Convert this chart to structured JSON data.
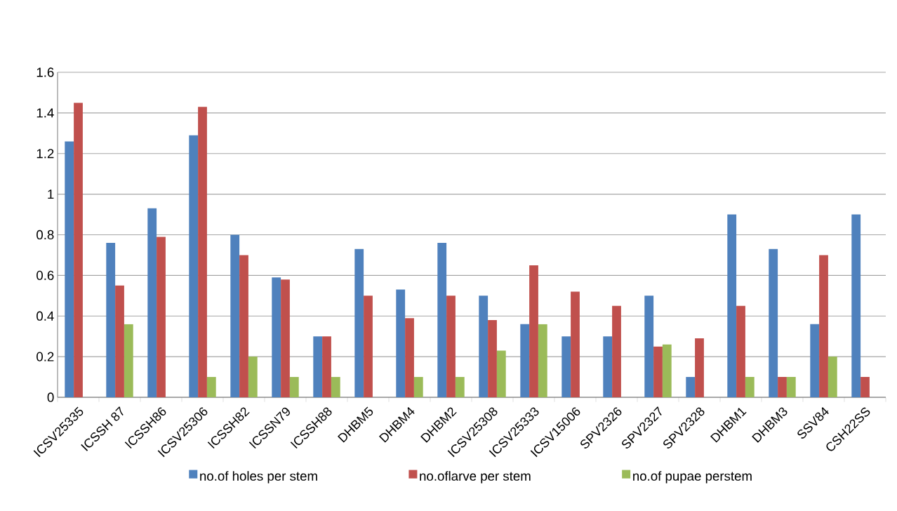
{
  "chart_data": {
    "type": "bar",
    "categories": [
      "ICSV25335",
      "ICSSH 87",
      "ICSSH86",
      "ICSV25306",
      "ICSSH82",
      "ICSSN79",
      "ICSSH88",
      "DHBM5",
      "DHBM4",
      "DHBM2",
      "ICSV25308",
      "ICSV25333",
      "ICSV15006",
      "SPV2326",
      "SPV2327",
      "SPV2328",
      "DHBM1",
      "DHBM3",
      "SSV84",
      "CSH22SS"
    ],
    "series": [
      {
        "name": "no.of holes per stem",
        "color": "#4f81bd",
        "values": [
          1.26,
          0.76,
          0.93,
          1.29,
          0.8,
          0.59,
          0.3,
          0.73,
          0.53,
          0.76,
          0.5,
          0.36,
          0.3,
          0.3,
          0.5,
          0.1,
          0.9,
          0.73,
          0.36,
          0.9
        ]
      },
      {
        "name": "no.oflarve per stem",
        "color": "#c0504d",
        "values": [
          1.45,
          0.55,
          0.79,
          1.43,
          0.7,
          0.58,
          0.3,
          0.5,
          0.39,
          0.5,
          0.38,
          0.65,
          0.52,
          0.45,
          0.25,
          0.29,
          0.45,
          0.1,
          0.7,
          0.1
        ]
      },
      {
        "name": "no.of pupae perstem",
        "color": "#9bbb59",
        "values": [
          null,
          0.36,
          null,
          0.1,
          0.2,
          0.1,
          0.1,
          null,
          0.1,
          0.1,
          0.23,
          0.36,
          null,
          null,
          0.26,
          null,
          0.1,
          0.1,
          0.2,
          null
        ]
      }
    ],
    "ylim": [
      0,
      1.6
    ],
    "yticks": [
      0,
      0.2,
      0.4,
      0.6,
      0.8,
      1,
      1.2,
      1.4,
      1.6
    ],
    "grid": "y",
    "legend": "bottom"
  }
}
